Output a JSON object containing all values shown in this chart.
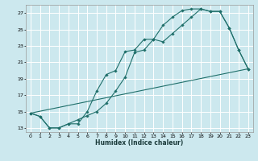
{
  "xlabel": "Humidex (Indice chaleur)",
  "bg_color": "#cce8ee",
  "line_color": "#1f6f6a",
  "grid_color": "#ffffff",
  "xlim": [
    -0.5,
    23.5
  ],
  "ylim": [
    12.5,
    28.0
  ],
  "xticks": [
    0,
    1,
    2,
    3,
    4,
    5,
    6,
    7,
    8,
    9,
    10,
    11,
    12,
    13,
    14,
    15,
    16,
    17,
    18,
    19,
    20,
    21,
    22,
    23
  ],
  "yticks": [
    13,
    15,
    17,
    19,
    21,
    23,
    25,
    27
  ],
  "line1_x": [
    0,
    1,
    2,
    3,
    4,
    5,
    6,
    7,
    8,
    9,
    10,
    11,
    12,
    13,
    14,
    15,
    16,
    17,
    18,
    19,
    20,
    21,
    22,
    23
  ],
  "line1_y": [
    14.8,
    14.4,
    13.0,
    13.0,
    13.5,
    13.5,
    15.0,
    17.5,
    19.5,
    20.0,
    22.3,
    22.5,
    23.8,
    23.8,
    25.5,
    26.5,
    27.3,
    27.5,
    27.5,
    27.2,
    27.2,
    25.2,
    22.5,
    20.2
  ],
  "line2_x": [
    0,
    1,
    2,
    3,
    4,
    5,
    6,
    7,
    8,
    9,
    10,
    11,
    12,
    13,
    14,
    15,
    16,
    17,
    18,
    19,
    20,
    21,
    22,
    23
  ],
  "line2_y": [
    14.8,
    14.4,
    13.0,
    13.0,
    13.5,
    14.0,
    14.5,
    15.0,
    16.0,
    17.5,
    19.2,
    22.2,
    22.5,
    23.8,
    23.5,
    24.5,
    25.5,
    26.5,
    27.5,
    27.2,
    27.2,
    25.2,
    22.5,
    20.2
  ],
  "line3_x": [
    0,
    23
  ],
  "line3_y": [
    14.8,
    20.2
  ]
}
